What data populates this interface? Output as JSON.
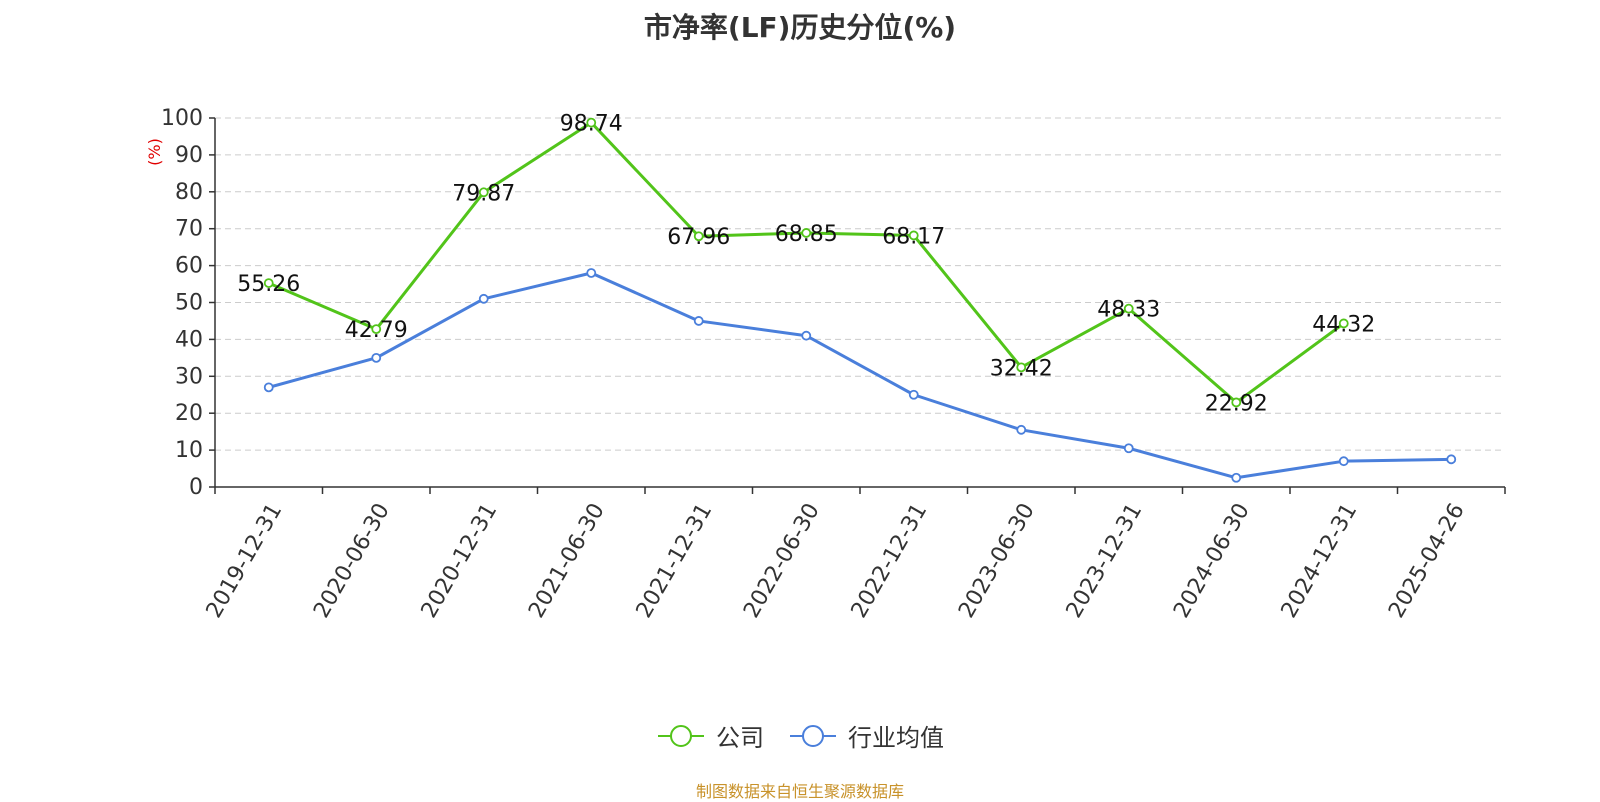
{
  "chart_data": {
    "type": "line",
    "title": "市净率(LF)历史分位(%)",
    "ylabel": "(%)",
    "ylim": [
      0,
      100
    ],
    "yticks": [
      0,
      10,
      20,
      30,
      40,
      50,
      60,
      70,
      80,
      90,
      100
    ],
    "categories": [
      "2019-12-31",
      "2020-06-30",
      "2020-12-31",
      "2021-06-30",
      "2021-12-31",
      "2022-06-30",
      "2022-12-31",
      "2023-06-30",
      "2023-12-31",
      "2024-06-30",
      "2024-12-31",
      "2025-04-26"
    ],
    "grid": true,
    "legend_position": "bottom",
    "series": [
      {
        "name": "公司",
        "color": "#52c41a",
        "show_labels": true,
        "values": [
          55.26,
          42.79,
          79.87,
          98.74,
          67.96,
          68.85,
          68.17,
          32.42,
          48.33,
          22.92,
          44.32,
          null
        ]
      },
      {
        "name": "行业均值",
        "color": "#4a7fdb",
        "show_labels": false,
        "values": [
          27.0,
          35.0,
          51.0,
          58.0,
          45.0,
          41.0,
          25.0,
          15.5,
          10.5,
          2.5,
          7.0,
          7.5
        ]
      }
    ]
  },
  "ylabel_color": "#e00000",
  "source_text": "制图数据来自恒生聚源数据库",
  "source_color": "#c8922a"
}
